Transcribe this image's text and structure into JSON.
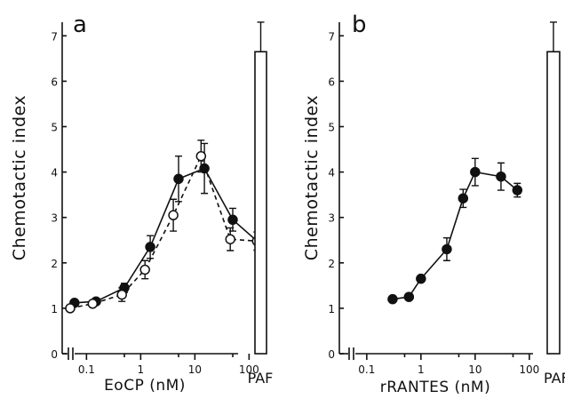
{
  "chart_data": [
    {
      "panel_label": "a",
      "type": "line",
      "xlabel": "EoCP (nM)",
      "ylabel": "Chemotactic index",
      "xscale": "log",
      "xlim": [
        0.03,
        250
      ],
      "ylim": [
        0,
        7.3
      ],
      "x_ticks": [
        0.1,
        1,
        10,
        100
      ],
      "x_tick_labels": [
        "0.1",
        "1",
        "10",
        "100"
      ],
      "y_ticks": [
        0,
        1,
        2,
        3,
        4,
        5,
        6,
        7
      ],
      "y_tick_labels": [
        "0",
        "1",
        "2",
        "3",
        "4",
        "5",
        "6",
        "7"
      ],
      "series": [
        {
          "marker": "filled-circle",
          "line": "solid",
          "x": [
            0.06,
            0.15,
            0.5,
            1.5,
            5,
            15,
            50,
            150
          ],
          "y": [
            1.12,
            1.15,
            1.45,
            2.35,
            3.85,
            4.08,
            2.95,
            2.45
          ],
          "err": [
            0.05,
            0.05,
            0.1,
            0.25,
            0.5,
            0.55,
            0.25,
            0.2
          ]
        },
        {
          "marker": "open-circle",
          "line": "dashed",
          "x": [
            0.05,
            0.13,
            0.45,
            1.2,
            4,
            13,
            45,
            140
          ],
          "y": [
            1.0,
            1.1,
            1.3,
            1.85,
            3.05,
            4.35,
            2.52,
            2.48
          ],
          "err": [
            0.05,
            0.05,
            0.15,
            0.2,
            0.35,
            0.35,
            0.25,
            0.2
          ]
        }
      ],
      "reference_bar": {
        "label": "PAF",
        "value": 6.65,
        "err": 0.65
      }
    },
    {
      "panel_label": "b",
      "type": "line",
      "xlabel": "rRANTES (nM)",
      "ylabel": "Chemotactic index",
      "xscale": "log",
      "xlim": [
        0.03,
        250
      ],
      "ylim": [
        0,
        7.3
      ],
      "x_ticks": [
        0.1,
        1,
        10,
        100
      ],
      "x_tick_labels": [
        "0.1",
        "1",
        "10",
        "100"
      ],
      "y_ticks": [
        0,
        1,
        2,
        3,
        4,
        5,
        6,
        7
      ],
      "y_tick_labels": [
        "0",
        "1",
        "2",
        "3",
        "4",
        "5",
        "6",
        "7"
      ],
      "series": [
        {
          "marker": "filled-circle",
          "line": "solid",
          "x": [
            0.3,
            0.6,
            1,
            3,
            6,
            10,
            30,
            60
          ],
          "y": [
            1.2,
            1.25,
            1.65,
            2.3,
            3.42,
            4.0,
            3.9,
            3.6
          ],
          "err": [
            0.05,
            0.05,
            0.05,
            0.25,
            0.2,
            0.3,
            0.3,
            0.15
          ]
        }
      ],
      "reference_bar": {
        "label": "PAF",
        "value": 6.65,
        "err": 0.65
      }
    }
  ]
}
